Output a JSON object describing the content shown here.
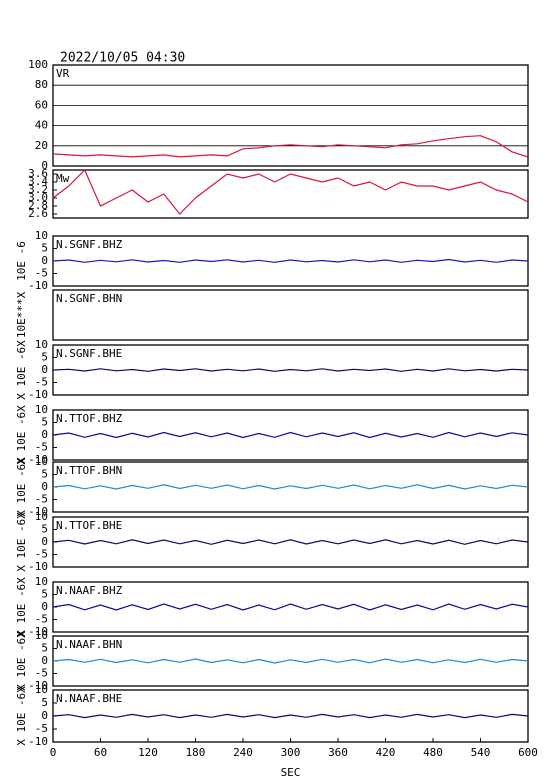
{
  "title": "2022/10/05 04:30",
  "chart_data": [
    {
      "type": "line",
      "label": "VR",
      "ylim": [
        0,
        100
      ],
      "yticks": [
        0,
        20,
        40,
        60,
        80,
        100
      ],
      "grid": true,
      "xlim": [
        0,
        600
      ],
      "x": [
        0,
        20,
        40,
        60,
        80,
        100,
        120,
        140,
        160,
        180,
        200,
        220,
        240,
        260,
        280,
        300,
        320,
        340,
        360,
        380,
        400,
        420,
        440,
        460,
        480,
        500,
        520,
        540,
        560,
        580,
        600
      ],
      "series": [
        {
          "color": "#dc143c",
          "values": [
            12,
            11,
            10,
            11,
            10,
            9,
            10,
            11,
            9,
            10,
            11,
            10,
            17,
            18,
            20,
            21,
            20,
            19,
            21,
            20,
            19,
            18,
            21,
            22,
            25,
            27,
            29,
            30,
            24,
            14,
            9
          ]
        }
      ]
    },
    {
      "type": "line",
      "label": "Mw",
      "ylim": [
        2.5,
        3.7
      ],
      "yticks": [
        2.6,
        2.8,
        {
          "value": 3,
          "label": "3.0"
        },
        3.2,
        3.4,
        3.6
      ],
      "grid": false,
      "xlim": [
        0,
        600
      ],
      "x": [
        0,
        20,
        40,
        60,
        80,
        100,
        120,
        140,
        160,
        180,
        200,
        220,
        240,
        260,
        280,
        300,
        320,
        340,
        360,
        380,
        400,
        420,
        440,
        460,
        480,
        500,
        520,
        540,
        560,
        580,
        600
      ],
      "series": [
        {
          "color": "#dc143c",
          "values": [
            3.0,
            3.3,
            3.7,
            2.8,
            3.0,
            3.2,
            2.9,
            3.1,
            2.6,
            3.0,
            3.3,
            3.6,
            3.5,
            3.6,
            3.4,
            3.6,
            3.5,
            3.4,
            3.5,
            3.3,
            3.4,
            3.2,
            3.4,
            3.3,
            3.3,
            3.2,
            3.3,
            3.4,
            3.2,
            3.1,
            2.9
          ]
        }
      ]
    },
    {
      "type": "line",
      "label": "N.SGNF.BHZ",
      "ylabel": "10E -6",
      "ylim": [
        -10,
        10
      ],
      "yticks": [
        -10,
        -5,
        0,
        5,
        10
      ],
      "xlim": [
        0,
        600
      ],
      "x": [
        0,
        20,
        40,
        60,
        80,
        100,
        120,
        140,
        160,
        180,
        200,
        220,
        240,
        260,
        280,
        300,
        320,
        340,
        360,
        380,
        400,
        420,
        440,
        460,
        480,
        500,
        520,
        540,
        560,
        580,
        600
      ],
      "series": [
        {
          "color": "#1818c8",
          "values": [
            0,
            0.4,
            -0.5,
            0.3,
            -0.3,
            0.5,
            -0.4,
            0.2,
            -0.5,
            0.4,
            -0.2,
            0.5,
            -0.4,
            0.3,
            -0.5,
            0.4,
            -0.3,
            0.2,
            -0.4,
            0.5,
            -0.3,
            0.4,
            -0.5,
            0.3,
            -0.2,
            0.6,
            -0.4,
            0.3,
            -0.5,
            0.4,
            0
          ]
        }
      ]
    },
    {
      "type": "line",
      "label": "N.SGNF.BHN",
      "ylabel": "10E***X",
      "xlim": [
        0,
        600
      ],
      "series": []
    },
    {
      "type": "line",
      "label": "N.SGNF.BHE",
      "ylabel": "X 10E -6X",
      "ylim": [
        -10,
        10
      ],
      "yticks": [
        -10,
        -5,
        0,
        5,
        10
      ],
      "xlim": [
        0,
        600
      ],
      "x": [
        0,
        20,
        40,
        60,
        80,
        100,
        120,
        140,
        160,
        180,
        200,
        220,
        240,
        260,
        280,
        300,
        320,
        340,
        360,
        380,
        400,
        420,
        440,
        460,
        480,
        500,
        520,
        540,
        560,
        580,
        600
      ],
      "series": [
        {
          "color": "#0a0a6e",
          "values": [
            0,
            0.3,
            -0.4,
            0.5,
            -0.3,
            0.2,
            -0.5,
            0.4,
            -0.2,
            0.5,
            -0.4,
            0.3,
            -0.3,
            0.4,
            -0.5,
            0.2,
            -0.3,
            0.5,
            -0.4,
            0.3,
            -0.2,
            0.4,
            -0.5,
            0.3,
            -0.4,
            0.5,
            -0.3,
            0.2,
            -0.4,
            0.3,
            0
          ]
        }
      ]
    },
    {
      "type": "line",
      "label": "N.TTOF.BHZ",
      "ylabel": "X 10E -6X",
      "ylim": [
        -10,
        10
      ],
      "yticks": [
        -10,
        -5,
        0,
        5,
        10
      ],
      "xlim": [
        0,
        600
      ],
      "x": [
        0,
        20,
        40,
        60,
        80,
        100,
        120,
        140,
        160,
        180,
        200,
        220,
        240,
        260,
        280,
        300,
        320,
        340,
        360,
        380,
        400,
        420,
        440,
        460,
        480,
        500,
        520,
        540,
        560,
        580,
        600
      ],
      "series": [
        {
          "color": "#0a0a9e",
          "values": [
            0,
            0.8,
            -0.9,
            0.6,
            -1.0,
            0.7,
            -0.8,
            1.0,
            -0.6,
            0.9,
            -0.7,
            0.8,
            -1.0,
            0.6,
            -0.9,
            1.0,
            -0.7,
            0.8,
            -0.6,
            0.9,
            -1.0,
            0.7,
            -0.8,
            0.6,
            -0.9,
            1.0,
            -0.7,
            0.8,
            -0.6,
            0.9,
            0
          ]
        }
      ]
    },
    {
      "type": "line",
      "label": "N.TTOF.BHN",
      "ylabel": "X 10E -6X",
      "ylim": [
        -10,
        10
      ],
      "yticks": [
        -10,
        -5,
        0,
        5,
        10
      ],
      "xlim": [
        0,
        600
      ],
      "x": [
        0,
        20,
        40,
        60,
        80,
        100,
        120,
        140,
        160,
        180,
        200,
        220,
        240,
        260,
        280,
        300,
        320,
        340,
        360,
        380,
        400,
        420,
        440,
        460,
        480,
        500,
        520,
        540,
        560,
        580,
        600
      ],
      "series": [
        {
          "color": "#1e8ad8",
          "values": [
            0,
            0.6,
            -0.7,
            0.5,
            -0.8,
            0.6,
            -0.5,
            0.9,
            -0.6,
            0.7,
            -0.5,
            0.8,
            -0.7,
            0.6,
            -0.8,
            0.5,
            -0.6,
            0.7,
            -0.5,
            0.8,
            -0.7,
            0.6,
            -0.5,
            0.9,
            -0.6,
            0.7,
            -0.8,
            0.5,
            -0.6,
            0.7,
            0
          ]
        }
      ]
    },
    {
      "type": "line",
      "label": "N.TTOF.BHE",
      "ylabel": "X 10E -6X",
      "ylim": [
        -10,
        10
      ],
      "yticks": [
        -10,
        -5,
        0,
        5,
        10
      ],
      "xlim": [
        0,
        600
      ],
      "x": [
        0,
        20,
        40,
        60,
        80,
        100,
        120,
        140,
        160,
        180,
        200,
        220,
        240,
        260,
        280,
        300,
        320,
        340,
        360,
        380,
        400,
        420,
        440,
        460,
        480,
        500,
        520,
        540,
        560,
        580,
        600
      ],
      "series": [
        {
          "color": "#0a0a6e",
          "values": [
            0,
            0.7,
            -0.8,
            0.6,
            -0.7,
            0.9,
            -0.6,
            0.8,
            -0.7,
            0.6,
            -0.9,
            0.7,
            -0.6,
            0.8,
            -0.7,
            0.9,
            -0.8,
            0.6,
            -0.7,
            0.8,
            -0.6,
            0.9,
            -0.7,
            0.6,
            -0.8,
            0.7,
            -0.9,
            0.6,
            -0.7,
            0.8,
            0
          ]
        }
      ]
    },
    {
      "type": "line",
      "label": "N.NAAF.BHZ",
      "ylabel": "X 10E -6X",
      "ylim": [
        -10,
        10
      ],
      "yticks": [
        -10,
        -5,
        0,
        5,
        10
      ],
      "xlim": [
        0,
        600
      ],
      "x": [
        0,
        20,
        40,
        60,
        80,
        100,
        120,
        140,
        160,
        180,
        200,
        220,
        240,
        260,
        280,
        300,
        320,
        340,
        360,
        380,
        400,
        420,
        440,
        460,
        480,
        500,
        520,
        540,
        560,
        580,
        600
      ],
      "series": [
        {
          "color": "#0a0a9e",
          "values": [
            0,
            1.0,
            -1.1,
            0.8,
            -1.2,
            0.9,
            -1.0,
            1.2,
            -0.8,
            1.1,
            -0.9,
            1.0,
            -1.2,
            0.8,
            -1.1,
            1.2,
            -0.9,
            1.0,
            -0.8,
            1.1,
            -1.2,
            0.9,
            -1.0,
            0.8,
            -1.1,
            1.2,
            -0.9,
            1.0,
            -0.8,
            1.1,
            0
          ]
        }
      ]
    },
    {
      "type": "line",
      "label": "N.NAAF.BHN",
      "ylabel": "X 10E -6X",
      "ylim": [
        -10,
        10
      ],
      "yticks": [
        -10,
        -5,
        0,
        5,
        10
      ],
      "xlim": [
        0,
        600
      ],
      "x": [
        0,
        20,
        40,
        60,
        80,
        100,
        120,
        140,
        160,
        180,
        200,
        220,
        240,
        260,
        280,
        300,
        320,
        340,
        360,
        380,
        400,
        420,
        440,
        460,
        480,
        500,
        520,
        540,
        560,
        580,
        600
      ],
      "series": [
        {
          "color": "#1e8ad8",
          "values": [
            0,
            0.6,
            -0.5,
            0.7,
            -0.6,
            0.5,
            -0.7,
            0.6,
            -0.5,
            0.8,
            -0.6,
            0.5,
            -0.7,
            0.6,
            -0.8,
            0.5,
            -0.6,
            0.7,
            -0.5,
            0.6,
            -0.7,
            0.8,
            -0.5,
            0.6,
            -0.7,
            0.5,
            -0.6,
            0.7,
            -0.5,
            0.6,
            0
          ]
        }
      ]
    },
    {
      "type": "line",
      "label": "N.NAAF.BHE",
      "ylabel": "X 10E -6X",
      "ylim": [
        -10,
        10
      ],
      "yticks": [
        -10,
        -5,
        0,
        5,
        10
      ],
      "xlim": [
        0,
        600
      ],
      "x": [
        0,
        20,
        40,
        60,
        80,
        100,
        120,
        140,
        160,
        180,
        200,
        220,
        240,
        260,
        280,
        300,
        320,
        340,
        360,
        380,
        400,
        420,
        440,
        460,
        480,
        500,
        520,
        540,
        560,
        580,
        600
      ],
      "series": [
        {
          "color": "#0a0a6e",
          "values": [
            0,
            0.5,
            -0.6,
            0.4,
            -0.5,
            0.6,
            -0.4,
            0.5,
            -0.6,
            0.4,
            -0.5,
            0.6,
            -0.4,
            0.5,
            -0.6,
            0.4,
            -0.5,
            0.6,
            -0.4,
            0.5,
            -0.6,
            0.4,
            -0.5,
            0.6,
            -0.4,
            0.5,
            -0.6,
            0.4,
            -0.5,
            0.6,
            0
          ]
        }
      ],
      "xticks": [
        0,
        60,
        120,
        180,
        240,
        300,
        360,
        420,
        480,
        540,
        600
      ],
      "xlabel": "SEC"
    }
  ]
}
